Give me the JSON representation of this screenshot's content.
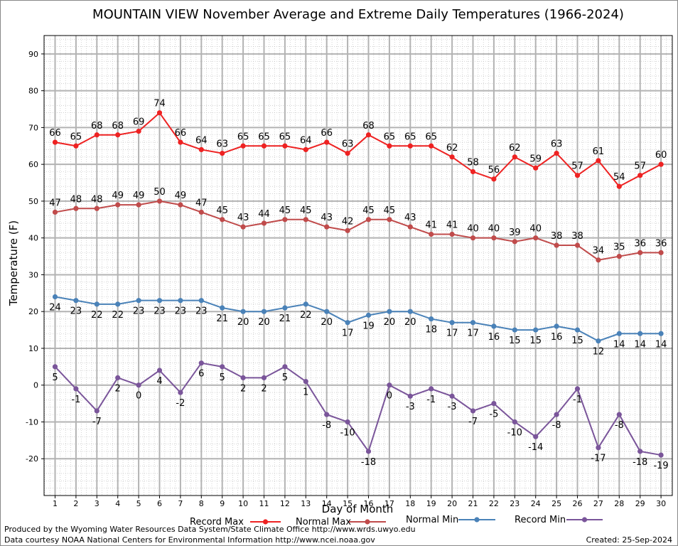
{
  "chart_data": {
    "type": "line",
    "title": "MOUNTAIN VIEW November Average and Extreme Daily Temperatures (1966-2024)",
    "xlabel": "Day of Month",
    "ylabel": "Temperature (F)",
    "ylim": [
      -30,
      95
    ],
    "yticks": [
      -20,
      -10,
      0,
      10,
      20,
      30,
      40,
      50,
      60,
      70,
      80,
      90
    ],
    "x": [
      1,
      2,
      3,
      4,
      5,
      6,
      7,
      8,
      9,
      10,
      11,
      12,
      13,
      14,
      15,
      16,
      17,
      18,
      19,
      20,
      21,
      22,
      23,
      24,
      25,
      26,
      27,
      28,
      29,
      30
    ],
    "grid": true,
    "legend_position": "bottom",
    "series": [
      {
        "name": "Record Max",
        "color": "#ee2222",
        "label_pos": "above",
        "values": [
          66,
          65,
          68,
          68,
          69,
          74,
          66,
          64,
          63,
          65,
          65,
          65,
          64,
          66,
          63,
          68,
          65,
          65,
          65,
          62,
          58,
          56,
          62,
          59,
          63,
          57,
          61,
          54,
          57,
          60
        ]
      },
      {
        "name": "Normal Max",
        "color": "#c04b4b",
        "label_pos": "above",
        "values": [
          47,
          48,
          48,
          49,
          49,
          50,
          49,
          47,
          45,
          43,
          44,
          45,
          45,
          43,
          42,
          45,
          45,
          43,
          41,
          41,
          40,
          40,
          39,
          40,
          38,
          38,
          34,
          35,
          36,
          36
        ]
      },
      {
        "name": "Normal Min",
        "color": "#4a82b8",
        "label_pos": "below",
        "values": [
          24,
          23,
          22,
          22,
          23,
          23,
          23,
          23,
          21,
          20,
          20,
          21,
          22,
          20,
          17,
          19,
          20,
          20,
          18,
          17,
          17,
          16,
          15,
          15,
          16,
          15,
          12,
          14,
          14,
          14
        ]
      },
      {
        "name": "Record Min",
        "color": "#7a559a",
        "label_pos": "below",
        "values": [
          5,
          -1,
          -7,
          2,
          0,
          4,
          -2,
          6,
          5,
          2,
          2,
          5,
          1,
          -8,
          -10,
          -18,
          0,
          -3,
          -1,
          -3,
          -7,
          -5,
          -10,
          -14,
          -8,
          -1,
          -17,
          -8,
          -18,
          -19
        ]
      }
    ]
  },
  "footer": {
    "line1": "Produced by the Wyoming Water Resources Data System/State Climate Office http://www.wrds.uwyo.edu",
    "line2": "Data courtesy NOAA National Centers for Environmental Information http://www.ncei.noaa.gov",
    "created": "Created:  25-Sep-2024"
  }
}
